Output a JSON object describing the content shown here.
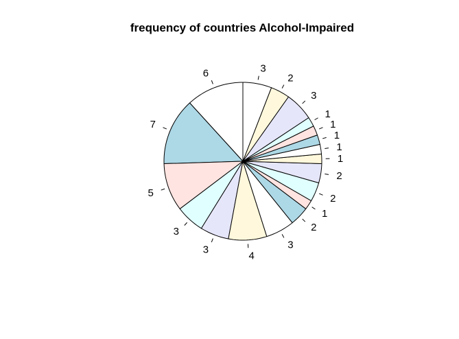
{
  "chart_data": {
    "type": "pie",
    "title": "frequency of countries Alcohol-Impaired",
    "values": [
      6,
      7,
      5,
      3,
      3,
      4,
      3,
      2,
      1,
      2,
      2,
      1,
      1,
      1,
      1,
      1,
      3,
      2,
      3
    ],
    "labels": [
      "6",
      "7",
      "5",
      "3",
      "3",
      "4",
      "3",
      "2",
      "1",
      "2",
      "2",
      "1",
      "1",
      "1",
      "1",
      "1",
      "3",
      "2",
      "3"
    ],
    "colors": [
      "#ffffff",
      "#add8e6",
      "#ffe4e1",
      "#e0ffff",
      "#e6e6fa",
      "#fff8dc"
    ],
    "start_angle_deg": 90,
    "direction": "counterclockwise",
    "border_color": "#000000",
    "legend": "none",
    "grid": false
  }
}
